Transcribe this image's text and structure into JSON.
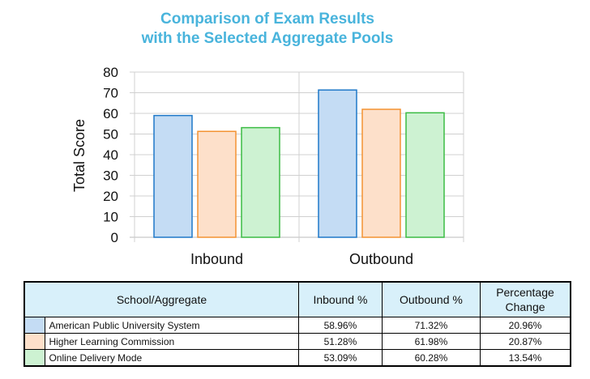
{
  "chart_data": {
    "type": "bar",
    "title_lines": [
      "Comparison of Exam Results",
      "with the Selected Aggregate Pools"
    ],
    "xlabel": "",
    "ylabel": "Total Score",
    "ylim": [
      0,
      80
    ],
    "yticks": [
      0,
      10,
      20,
      30,
      40,
      50,
      60,
      70,
      80
    ],
    "grid": true,
    "categories": [
      "Inbound",
      "Outbound"
    ],
    "series": [
      {
        "name": "American Public University System",
        "values": [
          58.96,
          71.32
        ],
        "fill": "#c4dcf4",
        "stroke": "#1f78c8"
      },
      {
        "name": "Higher Learning Commission",
        "values": [
          51.28,
          61.98
        ],
        "fill": "#fde0ca",
        "stroke": "#f39232"
      },
      {
        "name": "Online Delivery Mode",
        "values": [
          53.09,
          60.28
        ],
        "fill": "#cdf2d2",
        "stroke": "#3cbc44"
      }
    ]
  },
  "table": {
    "headers": [
      "School/Aggregate",
      "Inbound %",
      "Outbound %",
      "Percentage Change"
    ],
    "rows": [
      {
        "name": "American Public University System",
        "inbound": "58.96%",
        "outbound": "71.32%",
        "change": "20.96%",
        "color": "#c4dcf4"
      },
      {
        "name": "Higher Learning Commission",
        "inbound": "51.28%",
        "outbound": "61.98%",
        "change": "20.87%",
        "color": "#fde0ca"
      },
      {
        "name": "Online Delivery Mode",
        "inbound": "53.09%",
        "outbound": "60.28%",
        "change": "13.54%",
        "color": "#cdf2d2"
      }
    ]
  }
}
